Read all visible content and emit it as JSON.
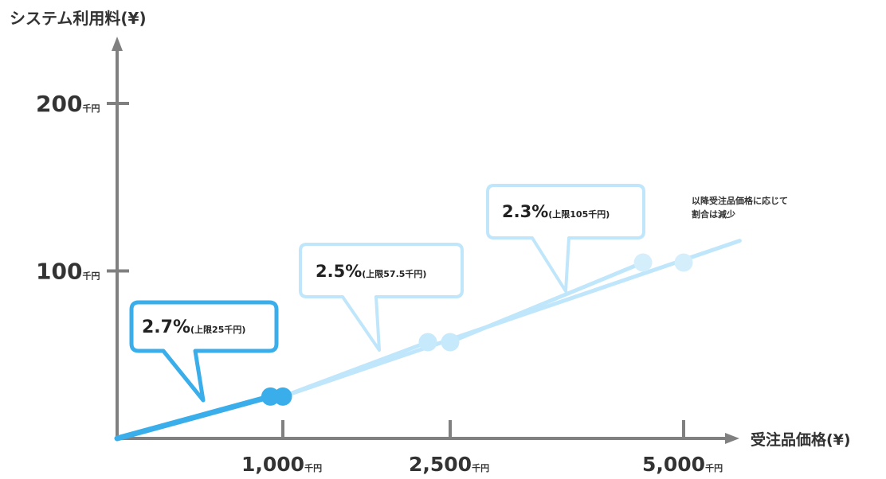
{
  "chart_data": {
    "type": "line",
    "ylabel": "システム利用料(¥)",
    "xlabel": "受注品価格(¥)",
    "unit": "千円",
    "y_ticks": [
      {
        "value": 100,
        "label": "100"
      },
      {
        "value": 200,
        "label": "200"
      }
    ],
    "x_ticks": [
      {
        "value": 1000,
        "label": "1,000"
      },
      {
        "value": 2500,
        "label": "2,500"
      },
      {
        "value": 5000,
        "label": "5,000"
      }
    ],
    "segments": [
      {
        "rate": "2.7%",
        "cap": "(上限25千円)",
        "x": [
          0,
          925
        ],
        "y": [
          0,
          25
        ],
        "color": "#3aaeea",
        "emphasis": true
      },
      {
        "rate": "2.5%",
        "cap": "(上限57.5千円)",
        "x": [
          1000,
          2300
        ],
        "y": [
          25,
          57.5
        ],
        "color": "#bfe6fa",
        "emphasis": false
      },
      {
        "rate": "2.3%",
        "cap": "(上限105千円)",
        "x": [
          2500,
          4565
        ],
        "y": [
          57.5,
          105
        ],
        "color": "#bfe6fa",
        "emphasis": false
      }
    ],
    "continuation": {
      "x": [
        5000,
        5600
      ],
      "y": [
        105,
        118
      ]
    },
    "cap_points": [
      {
        "x": 925,
        "y": 25,
        "color": "#3aaeea"
      },
      {
        "x": 1000,
        "y": 25,
        "color": "#3aaeea"
      },
      {
        "x": 2300,
        "y": 57.5,
        "color": "#c6e9fb"
      },
      {
        "x": 2500,
        "y": 57.5,
        "color": "#c6e9fb"
      },
      {
        "x": 4565,
        "y": 105,
        "color": "#d4eefc"
      },
      {
        "x": 5000,
        "y": 105,
        "color": "#d4eefc"
      }
    ],
    "note": [
      "以降受注品価格に応じて",
      "割合は減少"
    ],
    "colors": {
      "axis": "#808080",
      "emphasis": "#3aaeea",
      "light": "#bfe6fa",
      "bubble_light": "#bfe6fa"
    }
  }
}
